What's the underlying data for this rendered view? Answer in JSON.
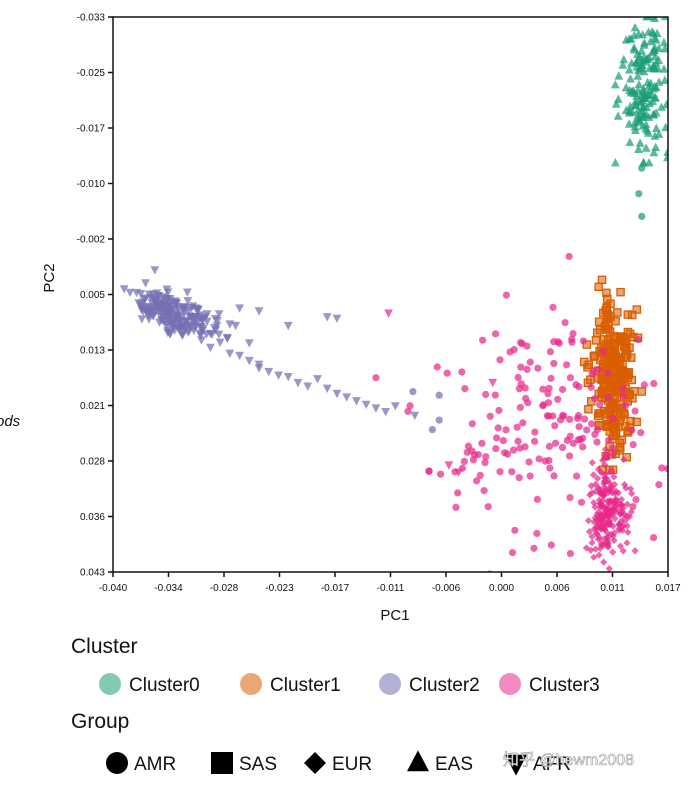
{
  "chart_data": {
    "type": "scatter",
    "title": "",
    "xlabel": "PC1",
    "ylabel": "PC2",
    "side_label": "ods",
    "xlim": [
      -0.04,
      0.017
    ],
    "ylim": [
      -0.033,
      0.043
    ],
    "y_inverted": true,
    "x_ticks": [
      "-0.040",
      "-0.034",
      "-0.028",
      "-0.023",
      "-0.017",
      "-0.011",
      "-0.006",
      "0.000",
      "0.006",
      "0.011",
      "0.017"
    ],
    "y_ticks": [
      "-0.033",
      "-0.025",
      "-0.017",
      "-0.010",
      "-0.002",
      "0.005",
      "0.013",
      "0.021",
      "0.028",
      "0.036",
      "0.043"
    ],
    "cluster_legend_title": "Cluster",
    "group_legend_title": "Group",
    "clusters": [
      {
        "name": "Cluster0",
        "color": "#1b9e77"
      },
      {
        "name": "Cluster1",
        "color": "#d95f02"
      },
      {
        "name": "Cluster2",
        "color": "#7570b3"
      },
      {
        "name": "Cluster3",
        "color": "#e7298a"
      }
    ],
    "groups": [
      {
        "name": "AMR",
        "shape": "circle"
      },
      {
        "name": "SAS",
        "shape": "square"
      },
      {
        "name": "EUR",
        "shape": "diamond"
      },
      {
        "name": "EAS",
        "shape": "triangle-up"
      },
      {
        "name": "AFR",
        "shape": "triangle-down"
      }
    ],
    "series": [
      {
        "name": "EAS (Cluster0)",
        "cluster": "Cluster0",
        "group": "EAS",
        "shape": "triangle-up",
        "color": "#1b9e77",
        "approx_n": 160,
        "center": [
          0.0145,
          -0.023
        ],
        "spread": [
          0.0012,
          0.0055
        ],
        "y_range": [
          -0.033,
          -0.013
        ]
      },
      {
        "name": "AMR (Cluster0)",
        "cluster": "Cluster0",
        "group": "AMR",
        "shape": "circle",
        "color": "#1b9e77",
        "points": [
          [
            0.0143,
            -0.0123
          ],
          [
            0.0143,
            -0.0057
          ],
          [
            0.014,
            -0.0088
          ]
        ]
      },
      {
        "name": "SAS (Cluster1)",
        "cluster": "Cluster1",
        "group": "SAS",
        "shape": "square",
        "color": "#d95f02",
        "approx_n": 240,
        "center": [
          0.0115,
          0.0165
        ],
        "spread": [
          0.0011,
          0.0055
        ],
        "y_range": [
          0.003,
          0.029
        ]
      },
      {
        "name": "AFR (Cluster2)",
        "cluster": "Cluster2",
        "group": "AFR",
        "shape": "triangle-down",
        "color": "#7570b3",
        "approx_n": 230,
        "dense_center": [
          -0.034,
          0.0075
        ],
        "dense_spread": [
          0.0028,
          0.0025
        ],
        "tail_points": [
          [
            -0.031,
            0.0105
          ],
          [
            -0.03,
            0.0122
          ],
          [
            -0.029,
            0.0115
          ],
          [
            -0.028,
            0.013
          ],
          [
            -0.027,
            0.0133
          ],
          [
            -0.026,
            0.014
          ],
          [
            -0.025,
            0.015
          ],
          [
            -0.025,
            0.0145
          ],
          [
            -0.024,
            0.0155
          ],
          [
            -0.023,
            0.016
          ],
          [
            -0.022,
            0.0162
          ],
          [
            -0.021,
            0.017
          ],
          [
            -0.02,
            0.0175
          ],
          [
            -0.019,
            0.0165
          ],
          [
            -0.018,
            0.0178
          ],
          [
            -0.017,
            0.0185
          ],
          [
            -0.016,
            0.019
          ],
          [
            -0.015,
            0.0195
          ],
          [
            -0.014,
            0.02
          ],
          [
            -0.013,
            0.0205
          ],
          [
            -0.012,
            0.021
          ],
          [
            -0.011,
            0.0202
          ],
          [
            -0.009,
            0.0215
          ],
          [
            -0.028,
            0.009
          ],
          [
            -0.027,
            0.0068
          ],
          [
            -0.025,
            0.0072
          ],
          [
            -0.018,
            0.008
          ],
          [
            -0.017,
            0.0082
          ],
          [
            -0.022,
            0.0092
          ]
        ]
      },
      {
        "name": "AMR (Cluster2)",
        "cluster": "Cluster2",
        "group": "AMR",
        "shape": "circle",
        "color": "#7570b3",
        "points": [
          [
            -0.0092,
            0.0183
          ],
          [
            -0.0065,
            0.0188
          ],
          [
            -0.0072,
            0.0235
          ],
          [
            -0.0065,
            0.0222
          ]
        ]
      },
      {
        "name": "AMR (Cluster3)",
        "cluster": "Cluster3",
        "group": "AMR",
        "shape": "circle",
        "color": "#e7298a",
        "approx_n": 180,
        "center": [
          0.005,
          0.023
        ],
        "spread": [
          0.0055,
          0.0075
        ]
      },
      {
        "name": "EUR (Cluster3)",
        "cluster": "Cluster3",
        "group": "EUR",
        "shape": "diamond",
        "color": "#e7298a",
        "approx_n": 200,
        "center": [
          0.0107,
          0.0345
        ],
        "spread": [
          0.001,
          0.003
        ]
      },
      {
        "name": "AFR (Cluster3)",
        "cluster": "Cluster3",
        "group": "AFR",
        "shape": "triangle-down",
        "color": "#e7298a",
        "points": [
          [
            -0.0117,
            0.0075
          ],
          [
            -0.0055,
            0.0283
          ],
          [
            -0.0045,
            0.0293
          ],
          [
            -0.001,
            0.017
          ]
        ]
      }
    ]
  },
  "watermark": "知乎 @hewm2008"
}
